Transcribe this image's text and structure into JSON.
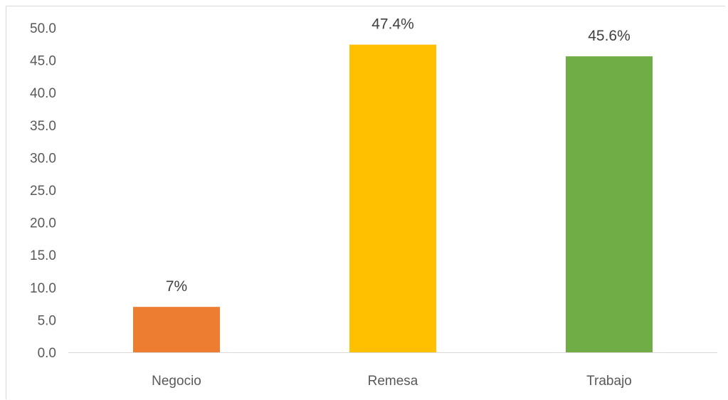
{
  "chart_data": {
    "type": "bar",
    "categories": [
      "Negocio",
      "Remesa",
      "Trabajo"
    ],
    "values": [
      7,
      47.4,
      45.6
    ],
    "data_labels": [
      "7%",
      "47.4%",
      "45.6%"
    ],
    "colors": [
      "#ed7d31",
      "#ffc000",
      "#70ad47"
    ],
    "yticks": [
      "0.0",
      "5.0",
      "10.0",
      "15.0",
      "20.0",
      "25.0",
      "30.0",
      "35.0",
      "40.0",
      "45.0",
      "50.0"
    ],
    "ylim": [
      0,
      50
    ],
    "grid": false,
    "title": "",
    "xlabel": "",
    "ylabel": ""
  }
}
